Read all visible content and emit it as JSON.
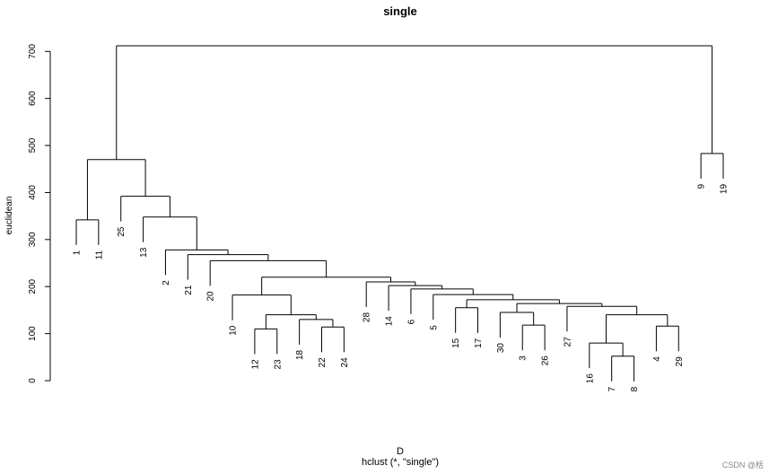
{
  "chart_data": {
    "type": "dendrogram",
    "title": "single",
    "ylabel": "euclidean",
    "xlabel": "D",
    "sub": "hclust (*, \"single\")",
    "yticks": [
      0,
      100,
      200,
      300,
      400,
      500,
      600,
      700
    ],
    "ylim": [
      0,
      730
    ],
    "leaf_order": [
      "1",
      "11",
      "25",
      "13",
      "2",
      "21",
      "20",
      "10",
      "12",
      "23",
      "18",
      "22",
      "24",
      "28",
      "14",
      "6",
      "5",
      "15",
      "17",
      "30",
      "3",
      "26",
      "27",
      "16",
      "7",
      "8",
      "4",
      "29",
      "9",
      "19"
    ],
    "merges": [
      {
        "a": "7",
        "b": "8",
        "height": 52
      },
      {
        "a": "3",
        "b": "26",
        "height": 118
      },
      {
        "a": "12",
        "b": "23",
        "height": 110
      },
      {
        "a": "22",
        "b": "24",
        "height": 114
      },
      {
        "a": "4",
        "b": "29",
        "height": 116
      },
      {
        "a": "16",
        "b": 1,
        "height": 80
      },
      {
        "a": "18",
        "b": 4,
        "height": 130
      },
      {
        "a": 3,
        "b": 7,
        "height": 140
      },
      {
        "a": 6,
        "b": 5,
        "height": 140
      },
      {
        "a": "30",
        "b": 2,
        "height": 145
      },
      {
        "a": "15",
        "b": "17",
        "height": 155
      },
      {
        "a": "27",
        "b": 9,
        "height": 158
      },
      {
        "a": "10",
        "b": 8,
        "height": 182
      },
      {
        "a": 10,
        "b": 12,
        "height": 164
      },
      {
        "a": 11,
        "b": 14,
        "height": 172
      },
      {
        "a": "5",
        "b": 15,
        "height": 183
      },
      {
        "a": "6",
        "b": 16,
        "height": 195
      },
      {
        "a": "14",
        "b": 17,
        "height": 202
      },
      {
        "a": "28",
        "b": 18,
        "height": 210
      },
      {
        "a": 13,
        "b": 19,
        "height": 220
      },
      {
        "a": "20",
        "b": 20,
        "height": 255
      },
      {
        "a": "21",
        "b": 21,
        "height": 268
      },
      {
        "a": "2",
        "b": 22,
        "height": 278
      },
      {
        "a": "13",
        "b": 23,
        "height": 348
      },
      {
        "a": "25",
        "b": 24,
        "height": 392
      },
      {
        "a": "1",
        "b": "11",
        "height": 342
      },
      {
        "a": 26,
        "b": 25,
        "height": 470
      },
      {
        "a": "9",
        "b": "19",
        "height": 483
      },
      {
        "a": 27,
        "b": 28,
        "height": 712
      }
    ]
  },
  "watermark": "CSDN @栝"
}
